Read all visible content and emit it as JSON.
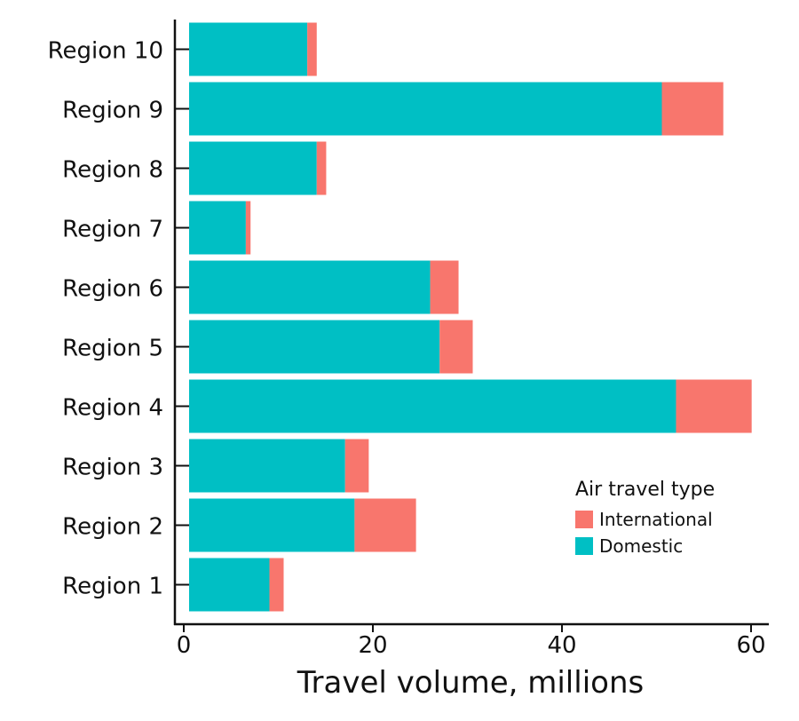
{
  "chart_data": {
    "type": "bar",
    "orientation": "horizontal",
    "stacked": true,
    "categories": [
      "Region 1",
      "Region 2",
      "Region 3",
      "Region 4",
      "Region 5",
      "Region 6",
      "Region 7",
      "Region 8",
      "Region 9",
      "Region 10"
    ],
    "series": [
      {
        "name": "Domestic",
        "color": "#00BFC4",
        "values": [
          8.5,
          17.5,
          16.5,
          51.5,
          26.5,
          25.5,
          6.0,
          13.5,
          50.0,
          12.5
        ]
      },
      {
        "name": "International",
        "color": "#F8766D",
        "values": [
          1.5,
          6.5,
          2.5,
          8.0,
          3.5,
          3.0,
          0.5,
          1.0,
          6.5,
          1.0
        ]
      }
    ],
    "xlabel": "Travel volume, millions",
    "ylabel": "",
    "xlim": [
      0,
      60
    ],
    "xticks": [
      "0",
      "20",
      "40",
      "60"
    ],
    "legend": {
      "title": "Air travel type",
      "entries": [
        "International",
        "Domestic"
      ],
      "placement": "bottom-right"
    },
    "grid": false
  }
}
